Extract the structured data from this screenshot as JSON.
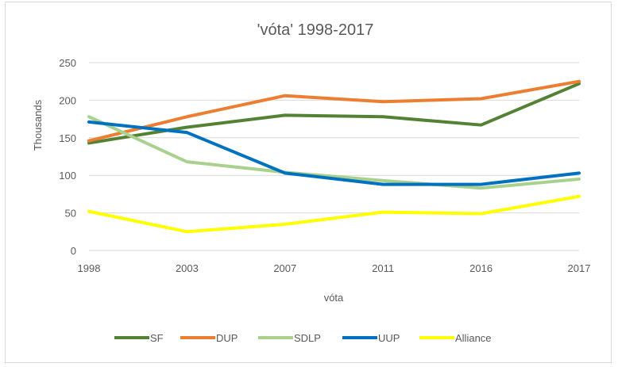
{
  "chart_data": {
    "type": "line",
    "title": "'vóta' 1998-2017",
    "xlabel": "vóta",
    "ylabel": "Thousands",
    "categories": [
      "1998",
      "2003",
      "2007",
      "2011",
      "2016",
      "2017"
    ],
    "ylim": [
      0,
      250
    ],
    "yticks": [
      0,
      50,
      100,
      150,
      200,
      250
    ],
    "ytick_labels": [
      "0",
      "50",
      "100",
      "150",
      "200",
      "250"
    ],
    "grid": true,
    "legend_position": "bottom",
    "series": [
      {
        "name": "SF",
        "color": "#548235",
        "values": [
          143,
          164,
          180,
          178,
          167,
          222
        ]
      },
      {
        "name": "DUP",
        "color": "#ED7D31",
        "values": [
          146,
          178,
          206,
          198,
          202,
          225
        ]
      },
      {
        "name": "SDLP",
        "color": "#A9D18E",
        "values": [
          178,
          118,
          104,
          93,
          83,
          95
        ]
      },
      {
        "name": "UUP",
        "color": "#0070C0",
        "values": [
          171,
          157,
          103,
          88,
          88,
          103
        ]
      },
      {
        "name": "Alliance",
        "color": "#FFFF00",
        "values": [
          52,
          25,
          35,
          51,
          49,
          72
        ]
      }
    ]
  }
}
